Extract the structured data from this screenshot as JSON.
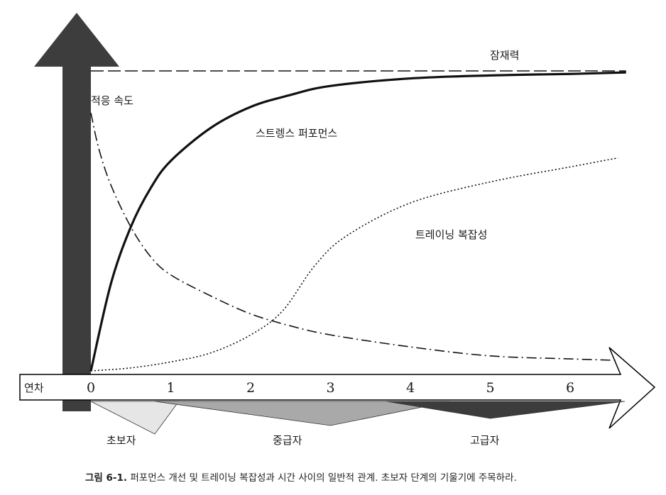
{
  "chart_data": {
    "type": "line",
    "x_axis": {
      "label": "연차",
      "ticks": [
        "0",
        "1",
        "2",
        "3",
        "4",
        "5",
        "6"
      ],
      "xlim": [
        0,
        6.7
      ]
    },
    "y_axis": {
      "ylim": [
        0,
        1.0
      ],
      "tick_labels": "none"
    },
    "series": [
      {
        "name": "잠재력",
        "style": "dashed",
        "x": [
          0,
          6.7
        ],
        "y": [
          1.0,
          1.0
        ]
      },
      {
        "name": "스트렝스 퍼포먼스",
        "style": "solid",
        "x": [
          0,
          0.25,
          0.5,
          0.75,
          1,
          1.5,
          2,
          2.5,
          3,
          4,
          5,
          6,
          6.7
        ],
        "y": [
          0,
          0.29,
          0.48,
          0.61,
          0.7,
          0.81,
          0.88,
          0.92,
          0.95,
          0.975,
          0.985,
          0.99,
          0.995
        ]
      },
      {
        "name": "트레이닝 복잡성",
        "style": "dotted",
        "x": [
          0,
          0.5,
          1,
          1.5,
          2,
          2.4,
          2.8,
          3.2,
          4,
          5,
          6,
          6.6
        ],
        "y": [
          0,
          0.01,
          0.03,
          0.06,
          0.12,
          0.2,
          0.35,
          0.45,
          0.56,
          0.63,
          0.68,
          0.71
        ]
      },
      {
        "name": "적응 속도",
        "style": "dash-dot",
        "x": [
          0,
          0.1,
          0.25,
          0.5,
          0.75,
          1,
          1.5,
          2,
          2.5,
          3,
          4,
          5,
          6,
          6.6
        ],
        "y": [
          0.86,
          0.74,
          0.62,
          0.48,
          0.38,
          0.32,
          0.25,
          0.19,
          0.15,
          0.12,
          0.08,
          0.05,
          0.04,
          0.035
        ]
      }
    ],
    "bands": [
      {
        "name": "초보자",
        "start": 0,
        "peak": 0.8,
        "end": 1.1,
        "color": "#e6e6e6"
      },
      {
        "name": "중급자",
        "start": 0.8,
        "peak": 3.0,
        "end": 4.5,
        "color": "#a9a9a9"
      },
      {
        "name": "고급자",
        "start": 3.7,
        "peak": 5.0,
        "end": 6.7,
        "color": "#3c3c3c"
      }
    ],
    "grid": false,
    "legend": "inline-labels"
  },
  "caption": {
    "label": "그림 6-1.",
    "text": "퍼포먼스 개선 및 트레이닝 복잡성과 시간 사이의 일반적 관계. 초보자 단계의 기울기에 주목하라."
  }
}
